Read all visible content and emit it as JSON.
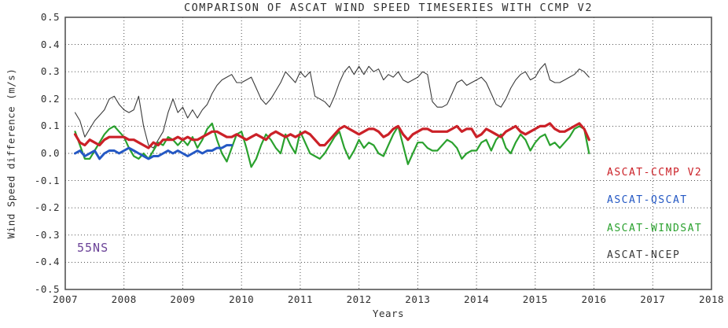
{
  "chart": {
    "region_label": "55NS",
    "region_label_color": "#6b4398",
    "frame_color": "#555555",
    "background_color": "#ffffff"
  },
  "chart_data": {
    "type": "line",
    "title": "COMPARISON OF ASCAT WIND SPEED TIMESERIES WITH CCMP V2",
    "xlabel": "Years",
    "ylabel": "Wind Speed difference (m/s)",
    "xlim": [
      2007,
      2018
    ],
    "ylim": [
      -0.5,
      0.5
    ],
    "x_ticks": [
      "2007",
      "2008",
      "2009",
      "2010",
      "2011",
      "2012",
      "2013",
      "2014",
      "2015",
      "2016",
      "2017",
      "2018"
    ],
    "y_ticks": [
      "0.5",
      "0.4",
      "0.3",
      "0.2",
      "0.1",
      "0.0",
      "-0.1",
      "-0.2",
      "-0.3",
      "-0.4",
      "-0.5"
    ],
    "grid": true,
    "grid_style": "dotted",
    "legend_position": "inside-right",
    "annotation": "55NS",
    "x_step": 0.0833333,
    "x_unit": "decimal years, monthly samples",
    "series": [
      {
        "name": "ASCAT-CCMP V2",
        "color": "#cb2128",
        "stroke_width": 3.2,
        "x_start": 2007.1667,
        "values": [
          0.07,
          0.04,
          0.03,
          0.05,
          0.04,
          0.03,
          0.05,
          0.06,
          0.06,
          0.06,
          0.06,
          0.05,
          0.05,
          0.04,
          0.03,
          0.02,
          0.04,
          0.03,
          0.05,
          0.05,
          0.05,
          0.06,
          0.05,
          0.06,
          0.05,
          0.05,
          0.06,
          0.07,
          0.08,
          0.08,
          0.07,
          0.06,
          0.06,
          0.07,
          0.06,
          0.05,
          0.06,
          0.07,
          0.06,
          0.05,
          0.07,
          0.08,
          0.07,
          0.06,
          0.07,
          0.06,
          0.07,
          0.08,
          0.07,
          0.05,
          0.03,
          0.03,
          0.05,
          0.07,
          0.09,
          0.1,
          0.09,
          0.08,
          0.07,
          0.08,
          0.09,
          0.09,
          0.08,
          0.06,
          0.07,
          0.09,
          0.1,
          0.07,
          0.05,
          0.07,
          0.08,
          0.09,
          0.09,
          0.08,
          0.08,
          0.08,
          0.08,
          0.09,
          0.1,
          0.08,
          0.09,
          0.09,
          0.06,
          0.07,
          0.09,
          0.08,
          0.07,
          0.06,
          0.08,
          0.09,
          0.1,
          0.08,
          0.07,
          0.08,
          0.09,
          0.1,
          0.1,
          0.11,
          0.09,
          0.08,
          0.08,
          0.09,
          0.1,
          0.11,
          0.09,
          0.05
        ]
      },
      {
        "name": "ASCAT-QSCAT",
        "color": "#2458c4",
        "stroke_width": 3.0,
        "x_start": 2007.1667,
        "values": [
          0.0,
          0.01,
          -0.01,
          0.0,
          0.01,
          -0.02,
          0.0,
          0.01,
          0.01,
          0.0,
          0.01,
          0.02,
          0.01,
          0.0,
          -0.01,
          -0.02,
          -0.01,
          -0.01,
          0.0,
          0.01,
          0.0,
          0.01,
          0.0,
          -0.01,
          0.0,
          0.01,
          0.0,
          0.01,
          0.01,
          0.02,
          0.02,
          0.03,
          0.03
        ]
      },
      {
        "name": "ASCAT-WINDSAT",
        "color": "#2aa12e",
        "stroke_width": 2.2,
        "x_start": 2007.1667,
        "values": [
          0.08,
          0.03,
          -0.02,
          -0.02,
          0.01,
          0.04,
          0.07,
          0.09,
          0.1,
          0.08,
          0.06,
          0.02,
          -0.01,
          -0.02,
          0.0,
          -0.02,
          0.01,
          0.04,
          0.03,
          0.06,
          0.05,
          0.03,
          0.05,
          0.03,
          0.06,
          0.02,
          0.05,
          0.09,
          0.11,
          0.05,
          0.0,
          -0.03,
          0.02,
          0.07,
          0.08,
          0.02,
          -0.05,
          -0.02,
          0.03,
          0.07,
          0.05,
          0.02,
          0.0,
          0.07,
          0.03,
          0.0,
          0.08,
          0.04,
          0.0,
          -0.01,
          -0.02,
          0.0,
          0.03,
          0.06,
          0.08,
          0.02,
          -0.02,
          0.01,
          0.05,
          0.02,
          0.04,
          0.03,
          0.0,
          -0.01,
          0.03,
          0.07,
          0.1,
          0.03,
          -0.04,
          0.0,
          0.04,
          0.04,
          0.02,
          0.01,
          0.01,
          0.03,
          0.05,
          0.04,
          0.02,
          -0.02,
          0.0,
          0.01,
          0.01,
          0.04,
          0.05,
          0.01,
          0.05,
          0.07,
          0.02,
          0.0,
          0.04,
          0.07,
          0.05,
          0.01,
          0.04,
          0.06,
          0.07,
          0.03,
          0.04,
          0.02,
          0.04,
          0.06,
          0.09,
          0.1,
          0.09,
          0.0
        ]
      },
      {
        "name": "ASCAT-NCEP",
        "color": "#3a3a3a",
        "stroke_width": 1.1,
        "x_start": 2007.1667,
        "values": [
          0.15,
          0.12,
          0.06,
          0.09,
          0.12,
          0.14,
          0.16,
          0.2,
          0.21,
          0.18,
          0.16,
          0.15,
          0.16,
          0.21,
          0.1,
          0.03,
          0.02,
          0.05,
          0.08,
          0.15,
          0.2,
          0.15,
          0.17,
          0.13,
          0.16,
          0.13,
          0.16,
          0.18,
          0.22,
          0.25,
          0.27,
          0.28,
          0.29,
          0.26,
          0.26,
          0.27,
          0.28,
          0.24,
          0.2,
          0.18,
          0.2,
          0.23,
          0.26,
          0.3,
          0.28,
          0.26,
          0.3,
          0.28,
          0.3,
          0.21,
          0.2,
          0.19,
          0.17,
          0.21,
          0.26,
          0.3,
          0.32,
          0.29,
          0.32,
          0.29,
          0.32,
          0.3,
          0.31,
          0.27,
          0.29,
          0.28,
          0.3,
          0.27,
          0.26,
          0.27,
          0.28,
          0.3,
          0.29,
          0.19,
          0.17,
          0.17,
          0.18,
          0.22,
          0.26,
          0.27,
          0.25,
          0.26,
          0.27,
          0.28,
          0.26,
          0.22,
          0.18,
          0.17,
          0.2,
          0.24,
          0.27,
          0.29,
          0.3,
          0.27,
          0.28,
          0.31,
          0.33,
          0.27,
          0.26,
          0.26,
          0.27,
          0.28,
          0.29,
          0.31,
          0.3,
          0.28
        ]
      }
    ]
  }
}
